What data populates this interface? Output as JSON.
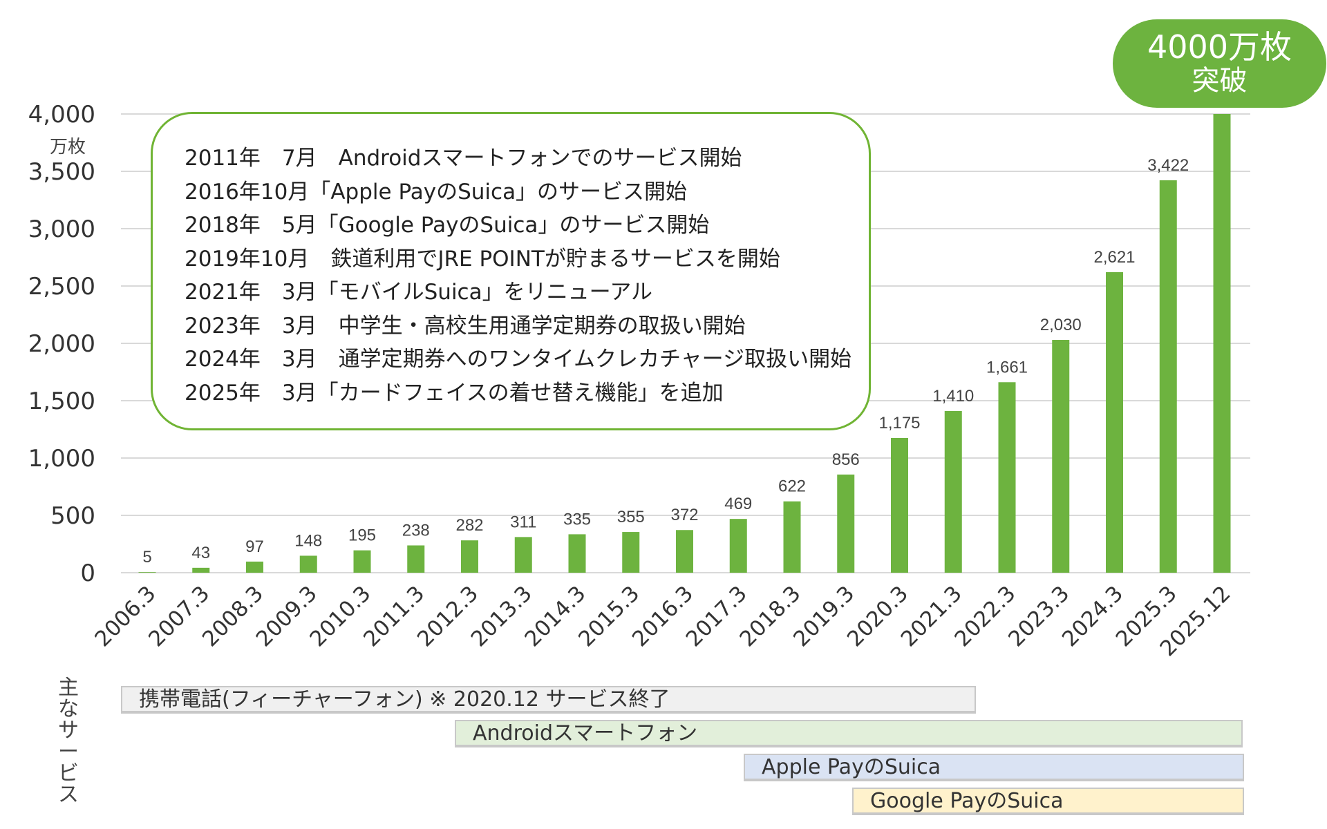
{
  "chart_data": {
    "type": "bar",
    "ylabel": "万枚",
    "ylim": [
      0,
      4000
    ],
    "yticks": [
      "0",
      "500",
      "1,000",
      "1,500",
      "2,000",
      "2,500",
      "3,000",
      "3,500",
      "4,000"
    ],
    "grid": true,
    "bar_color": "#6db33f",
    "categories": [
      "2006.3",
      "2007.3",
      "2008.3",
      "2009.3",
      "2010.3",
      "2011.3",
      "2012.3",
      "2013.3",
      "2014.3",
      "2015.3",
      "2016.3",
      "2017.3",
      "2018.3",
      "2019.3",
      "2020.3",
      "2021.3",
      "2022.3",
      "2023.3",
      "2024.3",
      "2025.3",
      "2025.12"
    ],
    "values": [
      5,
      43,
      97,
      148,
      195,
      238,
      282,
      311,
      335,
      355,
      372,
      469,
      622,
      856,
      1175,
      1410,
      1661,
      2030,
      2621,
      3422,
      4000
    ],
    "data_labels": [
      "5",
      "43",
      "97",
      "148",
      "195",
      "238",
      "282",
      "311",
      "335",
      "355",
      "372",
      "469",
      "622",
      "856",
      "1,175",
      "1,410",
      "1,661",
      "2,030",
      "2,621",
      "3,422",
      ""
    ]
  },
  "badge": {
    "line1": "4000万枚",
    "line2": "突破",
    "color": "#6db33f"
  },
  "milestones": [
    "2011年　7月　Androidスマートフォンでのサービス開始",
    "2016年10月「Apple PayのSuica」のサービス開始",
    "2018年　5月「Google PayのSuica」のサービス開始",
    "2019年10月　鉄道利用でJRE POINTが貯まるサービスを開始",
    "2021年　3月「モバイルSuica」をリニューアル",
    "2023年　3月　中学生・高校生用通学定期券の取扱い開始",
    "2024年　3月　通学定期券へのワンタイムクレカチャージ取扱い開始",
    "2025年　3月「カードフェイスの着せ替え機能」を追加"
  ],
  "services": {
    "title": "主なサービス",
    "items": [
      {
        "label": "携帯電話(フィーチャーフォン) ※ 2020.12 サービス終了",
        "color": "#f0f0f0"
      },
      {
        "label": "Androidスマートフォン",
        "color": "#e2efda"
      },
      {
        "label": "Apple PayのSuica",
        "color": "#dae3f3"
      },
      {
        "label": "Google PayのSuica",
        "color": "#fff2cc"
      }
    ]
  }
}
